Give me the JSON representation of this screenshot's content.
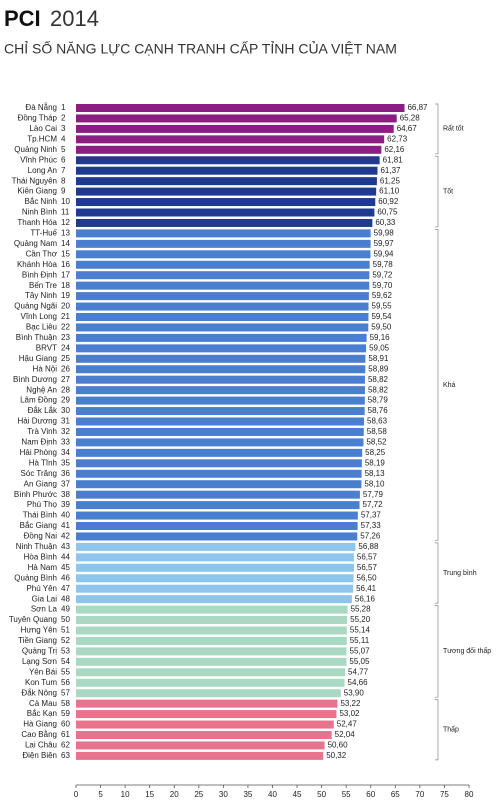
{
  "chart_data": {
    "type": "bar",
    "title": "PCI",
    "title_year": "2014",
    "subtitle": "CHỈ SỐ NĂNG LỰC CẠNH TRANH CẤP TỈNH CỦA VIỆT NAM",
    "xlim": [
      0,
      80
    ],
    "xticks": [
      0,
      5,
      10,
      15,
      20,
      25,
      30,
      35,
      40,
      45,
      50,
      55,
      60,
      65,
      70,
      75,
      80
    ],
    "series": [
      {
        "name": "Rất tốt",
        "color": "#8c1d82",
        "categories": [
          "Đà Nẵng",
          "Đồng Tháp",
          "Lào Cai",
          "Tp.HCM",
          "Quảng Ninh"
        ],
        "ranks": [
          1,
          2,
          3,
          4,
          5
        ],
        "values": [
          66.87,
          65.28,
          64.67,
          62.73,
          62.16
        ],
        "value_labels": [
          "66,87",
          "65,28",
          "64,67",
          "62,73",
          "62,16"
        ]
      },
      {
        "name": "Tốt",
        "color": "#1f3b8f",
        "categories": [
          "Vĩnh Phúc",
          "Long An",
          "Thái Nguyên",
          "Kiên Giang",
          "Bắc Ninh",
          "Ninh Bình",
          "Thanh Hóa"
        ],
        "ranks": [
          6,
          7,
          8,
          9,
          10,
          11,
          12
        ],
        "values": [
          61.81,
          61.37,
          61.25,
          61.1,
          60.92,
          60.75,
          60.33
        ],
        "value_labels": [
          "61,81",
          "61,37",
          "61,25",
          "61,10",
          "60,92",
          "60,75",
          "60,33"
        ]
      },
      {
        "name": "Khá",
        "color": "#4a7fcf",
        "categories": [
          "TT-Huế",
          "Quảng Nam",
          "Cần Thơ",
          "Khánh Hòa",
          "Bình Định",
          "Bến Tre",
          "Tây Ninh",
          "Quảng Ngãi",
          "Vĩnh Long",
          "Bạc Liêu",
          "Bình Thuận",
          "BRVT",
          "Hậu Giang",
          "Hà Nội",
          "Bình Dương",
          "Nghệ An",
          "Lâm Đồng",
          "Đắk Lắk",
          "Hải Dương",
          "Trà Vinh",
          "Nam Định",
          "Hải Phòng",
          "Hà Tĩnh",
          "Sóc Trăng",
          "An Giang",
          "Bình Phước",
          "Phú Thọ",
          "Thái Bình",
          "Bắc Giang",
          "Đồng Nai"
        ],
        "ranks": [
          13,
          14,
          15,
          16,
          17,
          18,
          19,
          20,
          21,
          22,
          23,
          24,
          25,
          26,
          27,
          28,
          29,
          30,
          31,
          32,
          33,
          34,
          35,
          36,
          37,
          38,
          39,
          40,
          41,
          42
        ],
        "values": [
          59.98,
          59.97,
          59.94,
          59.78,
          59.72,
          59.7,
          59.62,
          59.55,
          59.54,
          59.5,
          59.16,
          59.05,
          58.91,
          58.89,
          58.82,
          58.82,
          58.79,
          58.76,
          58.63,
          58.58,
          58.52,
          58.25,
          58.19,
          58.13,
          58.1,
          57.79,
          57.72,
          57.37,
          57.33,
          57.26
        ],
        "value_labels": [
          "59,98",
          "59,97",
          "59,94",
          "59,78",
          "59,72",
          "59,70",
          "59,62",
          "59,55",
          "59,54",
          "59,50",
          "59,16",
          "59,05",
          "58,91",
          "58,89",
          "58,82",
          "58,82",
          "58,79",
          "58,76",
          "58,63",
          "58,58",
          "58,52",
          "58,25",
          "58,19",
          "58,13",
          "58,10",
          "57,79",
          "57,72",
          "57,37",
          "57,33",
          "57,26"
        ]
      },
      {
        "name": "Trung bình",
        "color": "#8ec5ec",
        "categories": [
          "Ninh Thuận",
          "Hòa Bình",
          "Hà Nam",
          "Quảng Bình",
          "Phú Yên",
          "Gia Lai"
        ],
        "ranks": [
          43,
          44,
          45,
          46,
          47,
          48
        ],
        "values": [
          56.88,
          56.57,
          56.57,
          56.5,
          56.41,
          56.16
        ],
        "value_labels": [
          "56,88",
          "56,57",
          "56,57",
          "56,50",
          "56,41",
          "56,16"
        ]
      },
      {
        "name": "Tương đối thấp",
        "color": "#a9d9c2",
        "categories": [
          "Sơn La",
          "Tuyên Quang",
          "Hưng Yên",
          "Tiền Giang",
          "Quảng Trị",
          "Lạng Sơn",
          "Yên Bái",
          "Kon Tum",
          "Đắk Nông"
        ],
        "ranks": [
          49,
          50,
          51,
          52,
          53,
          54,
          55,
          56,
          57
        ],
        "values": [
          55.28,
          55.2,
          55.14,
          55.11,
          55.07,
          55.05,
          54.77,
          54.66,
          53.9
        ],
        "value_labels": [
          "55,28",
          "55,20",
          "55,14",
          "55,11",
          "55,07",
          "55,05",
          "54,77",
          "54,66",
          "53,90"
        ]
      },
      {
        "name": "Thấp",
        "color": "#e9728c",
        "categories": [
          "Cà Mau",
          "Bắc Kạn",
          "Hà Giang",
          "Cao Bằng",
          "Lai Châu",
          "Điện Biên"
        ],
        "ranks": [
          58,
          59,
          60,
          61,
          62,
          63
        ],
        "values": [
          53.22,
          53.02,
          52.47,
          52.04,
          50.6,
          50.32
        ],
        "value_labels": [
          "53,22",
          "53,02",
          "52,47",
          "52,04",
          "50,60",
          "50,32"
        ]
      }
    ]
  }
}
